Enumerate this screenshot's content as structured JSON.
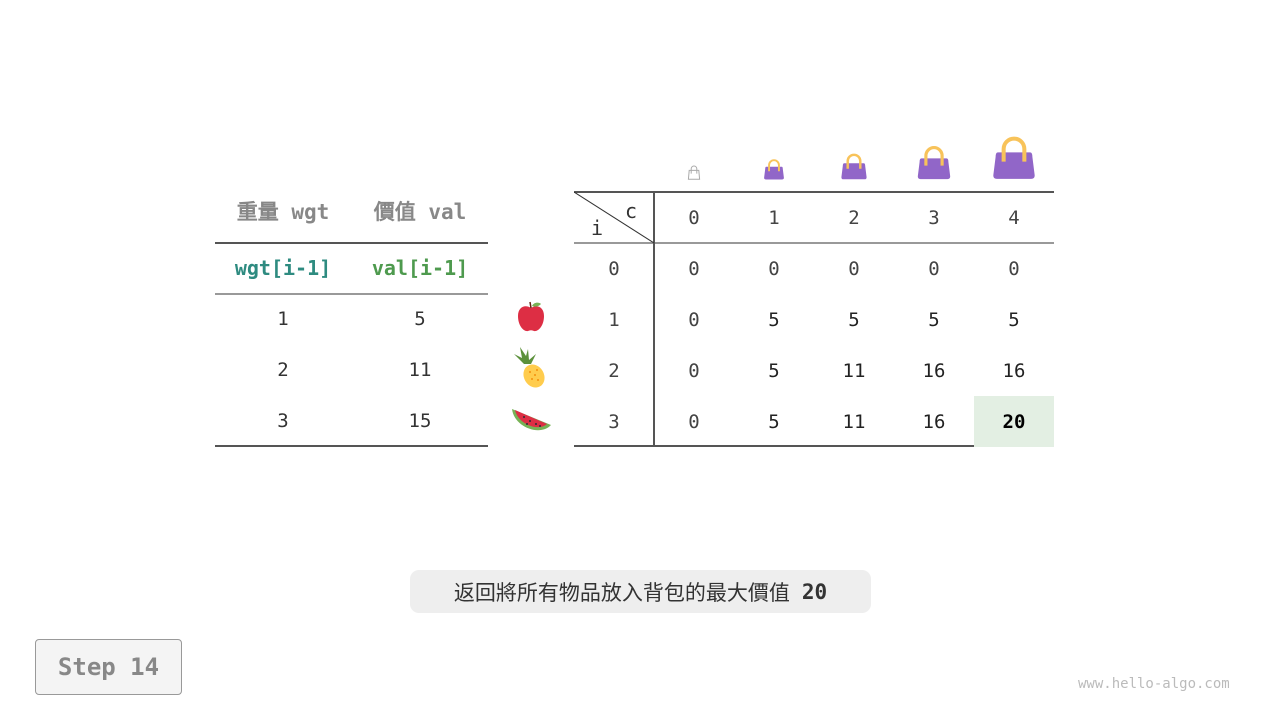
{
  "left_table": {
    "headers": [
      "重量 wgt",
      "價值 val"
    ],
    "subheaders": [
      "wgt[i-1]",
      "val[i-1]"
    ],
    "rows": [
      [
        "1",
        "5"
      ],
      [
        "2",
        "11"
      ],
      [
        "3",
        "15"
      ]
    ],
    "items": [
      "apple-icon",
      "pineapple-icon",
      "watermelon-icon"
    ]
  },
  "dp_table": {
    "row_label": "i",
    "col_label": "c",
    "col_headers": [
      "0",
      "1",
      "2",
      "3",
      "4"
    ],
    "row_headers": [
      "0",
      "1",
      "2",
      "3"
    ],
    "cells": [
      [
        "0",
        "0",
        "0",
        "0",
        "0"
      ],
      [
        "0",
        "5",
        "5",
        "5",
        "5"
      ],
      [
        "0",
        "5",
        "11",
        "16",
        "16"
      ],
      [
        "0",
        "5",
        "11",
        "16",
        "20"
      ]
    ],
    "highlight": {
      "row": 3,
      "col": 4,
      "color": "#e3efe3"
    },
    "capacity_icons": [
      "empty-bag-icon",
      "bag-icon",
      "bag-icon",
      "bag-icon",
      "bag-icon"
    ]
  },
  "colors": {
    "wgt": "#2e8b80",
    "val": "#4e9a4e",
    "bag": "#9166c8",
    "handle": "#f8c35a"
  },
  "caption": {
    "text": "返回將所有物品放入背包的最大價值",
    "value": "20"
  },
  "step_label": "Step 14",
  "watermark": "www.hello-algo.com"
}
